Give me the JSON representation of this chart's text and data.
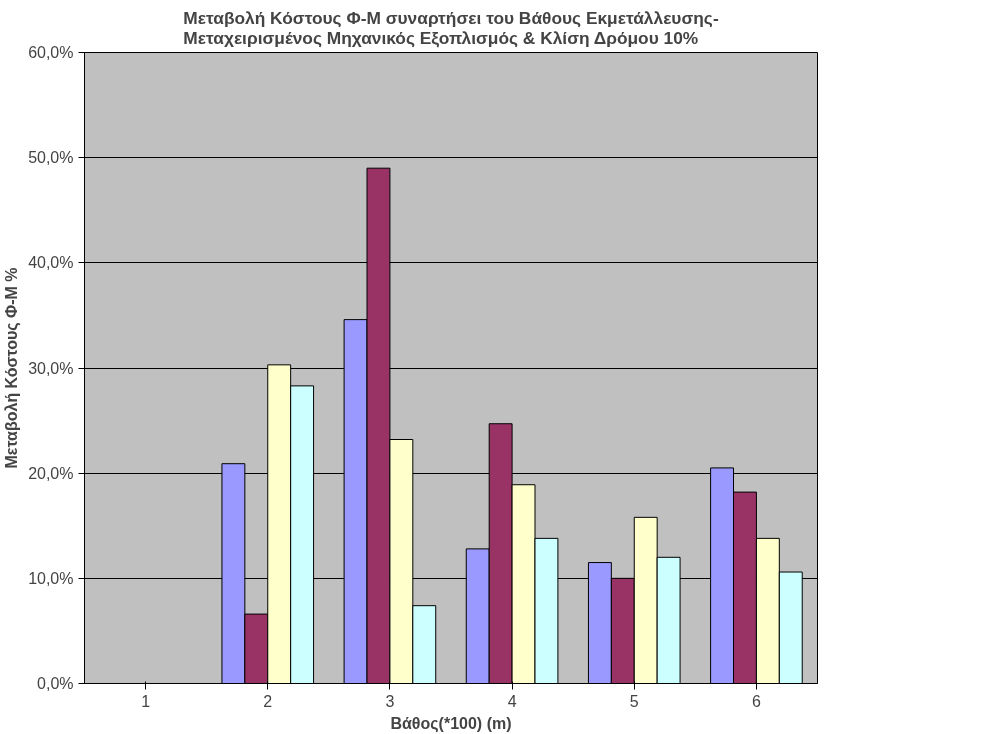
{
  "chart_data": {
    "type": "bar",
    "title": "Μεταβολή Κόστους Φ-Μ συναρτήσει του Βάθους Εκμετάλλευσης-\nΜεταχειρισμένος Μηχανικός Εξοπλισμός & Κλίση Δρόμου 10%",
    "xlabel": "Βάθος(*100) (m)",
    "ylabel": "Μεταβολή Κόστους Φ-Μ %",
    "categories": [
      "1",
      "2",
      "3",
      "4",
      "5",
      "6"
    ],
    "series": [
      {
        "color": "#9999ff",
        "values": [
          null,
          20.9,
          34.6,
          12.8,
          11.5,
          20.5
        ]
      },
      {
        "color": "#993366",
        "values": [
          null,
          6.6,
          49.0,
          24.7,
          10.0,
          18.2
        ]
      },
      {
        "color": "#ffffcc",
        "values": [
          null,
          30.3,
          23.2,
          18.9,
          15.8,
          13.8
        ]
      },
      {
        "color": "#ccffff",
        "values": [
          null,
          28.3,
          7.4,
          13.8,
          12.0,
          10.6
        ]
      }
    ],
    "ylim": [
      0,
      60
    ],
    "yticks": [
      {
        "value": 0,
        "label": "0,0%"
      },
      {
        "value": 10,
        "label": "10,0%"
      },
      {
        "value": 20,
        "label": "20,0%"
      },
      {
        "value": 30,
        "label": "30,0%"
      },
      {
        "value": 40,
        "label": "40,0%"
      },
      {
        "value": 50,
        "label": "50,0%"
      },
      {
        "value": 60,
        "label": "60,0%"
      }
    ],
    "grid": "y"
  }
}
